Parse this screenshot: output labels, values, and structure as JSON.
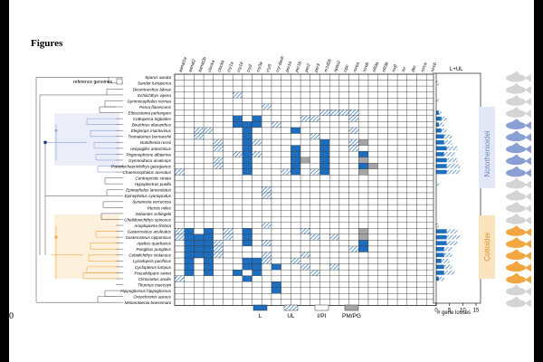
{
  "page": {
    "line_top": "99",
    "line_bottom": "100",
    "heading": "Figures"
  },
  "figure": {
    "reference_label": "reference genomes",
    "genes": [
      "aanat1a",
      "aanat2",
      "aanat2b",
      "clocka",
      "clockb",
      "cry1a",
      "cry1b",
      "cry2",
      "cry3a",
      "cry5",
      "cry-dash",
      "per1a",
      "per1b",
      "per2",
      "per3",
      "nr1d2b",
      "npas2",
      "cipc",
      "rorαa",
      "rorαb",
      "nfil3a",
      "nfil3b",
      "rorβ",
      "ror"
    ],
    "genes_extra": [
      "dec",
      "rorca",
      "rorcb"
    ],
    "species": [
      "Sparus aurata",
      "Sander lucioperca",
      "Dicentrarchus labrax",
      "Echiichthys vipera",
      "Gymnocephalus cernua",
      "Perca flavescens",
      "Etheostoma perlongum",
      "Cottoperca trigloides",
      "Bovichtus diacanthus",
      "Eleginops maclovinus",
      "Trematomus bernacchii",
      "Notothenia rossii",
      "Harpagifer antarcticus",
      "Pogonophryne albipinna",
      "Gymnodraco acuticeps",
      "Pseudochaenichthys georgianus",
      "Chaenocephalus aceratus",
      "Centropristis striata",
      "Hypoplectrus puella",
      "Epinephelus lanceolatus",
      "Epinephelus cyanopodus",
      "Synanceia verrucosa",
      "Pterois miles",
      "Sebastes schlegelii",
      "Chelidonichthys spinosus",
      "Anoplopoma fimbria",
      "Gasterosteus aculeatus",
      "Gasterosteus nipponicus",
      "Apeltes quadracus",
      "Pungitius pungitius",
      "Cebidichthys violaceus",
      "Lycodopsis pacificus",
      "Cyclopterus lumpus",
      "Pseudoliparis swirei",
      "Clinocottus analis",
      "Thunnus maccoyii",
      "Hippoglossus hippoglossus",
      "Oreochromis aureus",
      "Melanotaenia boesemani"
    ],
    "group_labels": [
      "Notothenioidei",
      "Cottoidei"
    ],
    "summary_header": "L+UL",
    "axis_label": "# gene losses",
    "axis_ticks": [
      "0",
      "5",
      "10",
      "15"
    ],
    "legend": [
      {
        "label": "L",
        "style": "solid"
      },
      {
        "label": "UL",
        "style": "hatched"
      },
      {
        "label": "I/PI",
        "style": "open"
      },
      {
        "label": "PM/PG",
        "style": "grey"
      }
    ],
    "gene_losses_L_plus_UL": [
      0,
      1,
      0,
      0,
      1,
      0,
      2,
      4,
      3,
      4,
      6,
      6,
      8,
      7,
      8,
      9,
      9,
      0,
      1,
      0,
      0,
      0,
      0,
      0,
      0,
      1,
      8,
      9,
      8,
      6,
      6,
      5,
      6,
      7,
      3,
      0,
      0,
      0,
      0
    ],
    "colors": {
      "loss": "#1f6dbd",
      "hatch": "#1f6dbd",
      "grey": "#a6a6a6",
      "notothenioidei": "#8a9fd4",
      "cottoidei": "#f2a640",
      "silhouette": "#d4d4d4",
      "background": "#ffffff"
    }
  }
}
